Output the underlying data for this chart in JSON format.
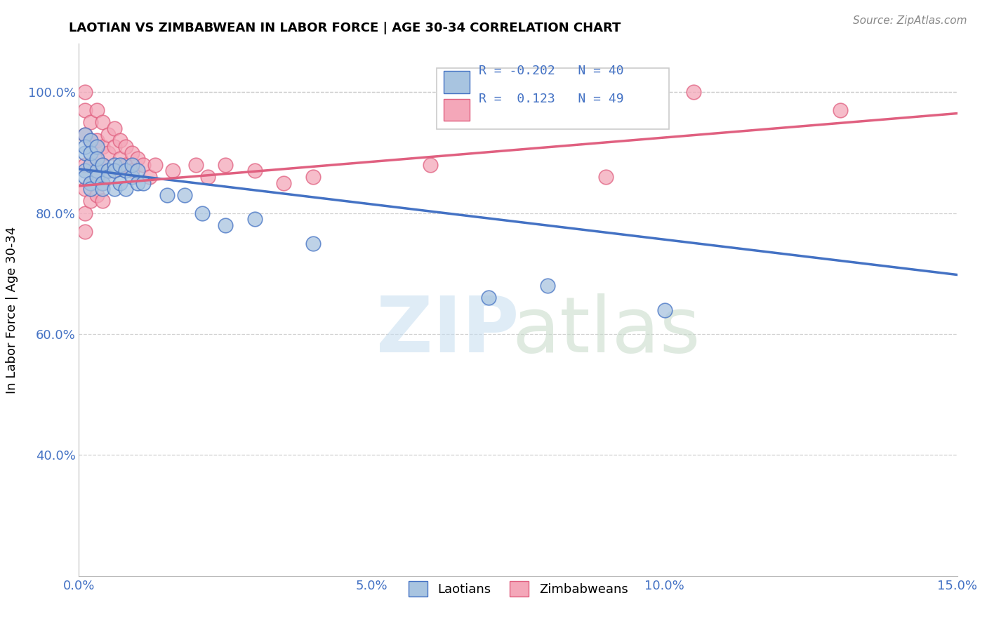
{
  "title": "LAOTIAN VS ZIMBABWEAN IN LABOR FORCE | AGE 30-34 CORRELATION CHART",
  "source": "Source: ZipAtlas.com",
  "ylabel": "In Labor Force | Age 30-34",
  "xlim": [
    0.0,
    0.15
  ],
  "ylim": [
    0.2,
    1.08
  ],
  "xticks": [
    0.0,
    0.05,
    0.1,
    0.15
  ],
  "xticklabels": [
    "0.0%",
    "5.0%",
    "10.0%",
    "15.0%"
  ],
  "yticks": [
    0.4,
    0.6,
    0.8,
    1.0
  ],
  "yticklabels": [
    "40.0%",
    "60.0%",
    "80.0%",
    "100.0%"
  ],
  "laotian_color": "#a8c4e0",
  "zimbabwean_color": "#f4a7b9",
  "laotian_line_color": "#4472c4",
  "zimbabwean_line_color": "#e06080",
  "R_laotian": -0.202,
  "N_laotian": 40,
  "R_zimbabwean": 0.123,
  "N_zimbabwean": 49,
  "legend_label_laotian": "Laotians",
  "legend_label_zimbabwean": "Zimbabweans",
  "trend_lao_y0": 0.873,
  "trend_lao_y1": 0.698,
  "trend_zim_y0": 0.845,
  "trend_zim_y1": 0.965,
  "laotian_x": [
    0.001,
    0.001,
    0.001,
    0.001,
    0.001,
    0.002,
    0.002,
    0.002,
    0.002,
    0.002,
    0.003,
    0.003,
    0.003,
    0.003,
    0.004,
    0.004,
    0.004,
    0.005,
    0.005,
    0.006,
    0.006,
    0.006,
    0.007,
    0.007,
    0.008,
    0.008,
    0.009,
    0.009,
    0.01,
    0.01,
    0.011,
    0.015,
    0.018,
    0.021,
    0.025,
    0.03,
    0.04,
    0.07,
    0.08,
    0.1
  ],
  "laotian_y": [
    0.87,
    0.9,
    0.86,
    0.93,
    0.91,
    0.88,
    0.85,
    0.84,
    0.92,
    0.9,
    0.87,
    0.91,
    0.89,
    0.86,
    0.88,
    0.85,
    0.84,
    0.87,
    0.86,
    0.88,
    0.84,
    0.87,
    0.85,
    0.88,
    0.87,
    0.84,
    0.86,
    0.88,
    0.87,
    0.85,
    0.85,
    0.83,
    0.83,
    0.8,
    0.78,
    0.79,
    0.75,
    0.66,
    0.68,
    0.64
  ],
  "zimbabwean_x": [
    0.001,
    0.001,
    0.001,
    0.001,
    0.001,
    0.001,
    0.001,
    0.002,
    0.002,
    0.002,
    0.002,
    0.002,
    0.003,
    0.003,
    0.003,
    0.003,
    0.003,
    0.004,
    0.004,
    0.004,
    0.004,
    0.004,
    0.005,
    0.005,
    0.005,
    0.006,
    0.006,
    0.006,
    0.007,
    0.007,
    0.008,
    0.008,
    0.009,
    0.009,
    0.01,
    0.011,
    0.012,
    0.013,
    0.016,
    0.02,
    0.022,
    0.025,
    0.03,
    0.035,
    0.04,
    0.06,
    0.09,
    0.105,
    0.13
  ],
  "zimbabwean_y": [
    0.97,
    1.0,
    0.93,
    0.88,
    0.84,
    0.8,
    0.77,
    0.95,
    0.92,
    0.88,
    0.85,
    0.82,
    0.97,
    0.92,
    0.89,
    0.86,
    0.83,
    0.95,
    0.91,
    0.88,
    0.85,
    0.82,
    0.93,
    0.9,
    0.87,
    0.94,
    0.91,
    0.87,
    0.92,
    0.89,
    0.91,
    0.88,
    0.9,
    0.87,
    0.89,
    0.88,
    0.86,
    0.88,
    0.87,
    0.88,
    0.86,
    0.88,
    0.87,
    0.85,
    0.86,
    0.88,
    0.86,
    1.0,
    0.97
  ]
}
